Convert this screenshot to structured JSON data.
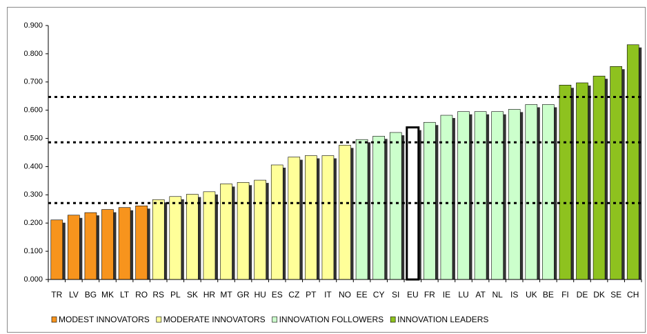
{
  "chart_data": {
    "type": "bar",
    "categories": [
      "TR",
      "LV",
      "BG",
      "MK",
      "LT",
      "RO",
      "RS",
      "PL",
      "SK",
      "HR",
      "MT",
      "GR",
      "HU",
      "ES",
      "CZ",
      "PT",
      "IT",
      "NO",
      "EE",
      "CY",
      "SI",
      "EU",
      "FR",
      "IE",
      "LU",
      "AT",
      "NL",
      "IS",
      "UK",
      "BE",
      "FI",
      "DE",
      "DK",
      "SE",
      "CH"
    ],
    "values": [
      0.211,
      0.228,
      0.237,
      0.248,
      0.255,
      0.261,
      0.283,
      0.294,
      0.302,
      0.311,
      0.339,
      0.344,
      0.352,
      0.406,
      0.434,
      0.439,
      0.439,
      0.476,
      0.496,
      0.508,
      0.521,
      0.539,
      0.557,
      0.582,
      0.595,
      0.595,
      0.595,
      0.603,
      0.62,
      0.62,
      0.689,
      0.697,
      0.721,
      0.755,
      0.832
    ],
    "colors": [
      "#f7941d",
      "#f7941d",
      "#f7941d",
      "#f7941d",
      "#f7941d",
      "#f7941d",
      "#ffff99",
      "#ffff99",
      "#ffff99",
      "#ffff99",
      "#ffff99",
      "#ffff99",
      "#ffff99",
      "#ffff99",
      "#ffff99",
      "#ffff99",
      "#ffff99",
      "#ffff99",
      "#ccffcc",
      "#ccffcc",
      "#ccffcc",
      "#ffffff",
      "#ccffcc",
      "#ccffcc",
      "#ccffcc",
      "#ccffcc",
      "#ccffcc",
      "#ccffcc",
      "#ccffcc",
      "#ccffcc",
      "#8ec21f",
      "#8ec21f",
      "#8ec21f",
      "#8ec21f",
      "#8ec21f"
    ],
    "legend": [
      {
        "name": "MODEST INNOVATORS",
        "color": "#f7941d"
      },
      {
        "name": "MODERATE INNOVATORS",
        "color": "#ffff99"
      },
      {
        "name": "INNOVATION FOLLOWERS",
        "color": "#ccffcc"
      },
      {
        "name": "INNOVATION LEADERS",
        "color": "#8ec21f"
      }
    ],
    "reference_lines": [
      0.271,
      0.486,
      0.647
    ],
    "ylim": [
      0,
      0.9
    ],
    "yticks": [
      {
        "value": 0,
        "label": "0.000"
      },
      {
        "value": 0.1,
        "label": "0.100"
      },
      {
        "value": 0.2,
        "label": "0.200"
      },
      {
        "value": 0.3,
        "label": "0.300"
      },
      {
        "value": 0.4,
        "label": "0.400"
      },
      {
        "value": 0.5,
        "label": "0.500"
      },
      {
        "value": 0.6,
        "label": "0.600"
      },
      {
        "value": 0.7,
        "label": "0.700"
      },
      {
        "value": 0.8,
        "label": "0.800"
      },
      {
        "value": 0.9,
        "label": "0.900"
      }
    ]
  }
}
